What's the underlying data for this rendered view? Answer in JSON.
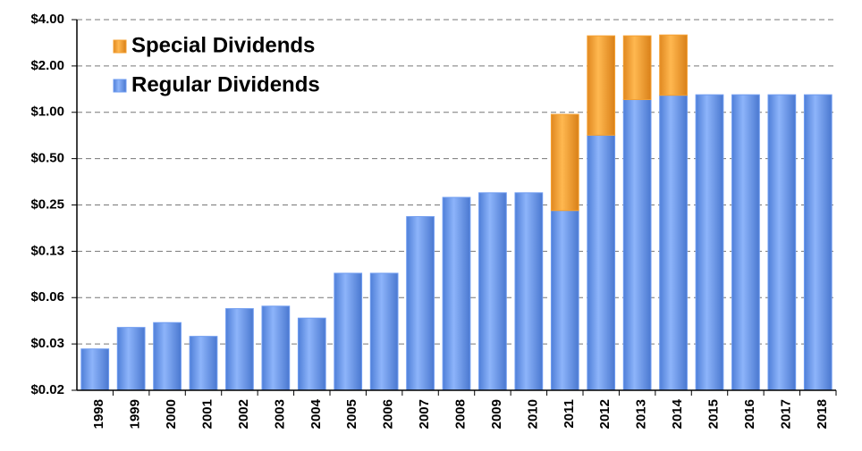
{
  "chart_data": {
    "type": "bar",
    "stacked": true,
    "log_scale": true,
    "log_base": 2,
    "categories": [
      "1998",
      "1999",
      "2000",
      "2001",
      "2002",
      "2003",
      "2004",
      "2005",
      "2006",
      "2007",
      "2008",
      "2009",
      "2010",
      "2011",
      "2012",
      "2013",
      "2014",
      "2015",
      "2016",
      "2017",
      "2018"
    ],
    "series": [
      {
        "name": "Regular Dividends",
        "color": "#6f9cf0",
        "values": [
          0.029,
          0.04,
          0.043,
          0.035,
          0.053,
          0.055,
          0.046,
          0.09,
          0.09,
          0.21,
          0.28,
          0.3,
          0.3,
          0.23,
          0.71,
          1.21,
          1.29,
          1.3,
          1.3,
          1.3,
          1.3
        ]
      },
      {
        "name": "Special Dividends",
        "color": "#f5a030",
        "values": [
          null,
          null,
          null,
          null,
          null,
          null,
          null,
          null,
          null,
          null,
          null,
          null,
          null,
          0.74,
          2.43,
          1.93,
          1.89,
          null,
          null,
          null,
          null
        ]
      }
    ],
    "ylim": [
      0.015625,
      4
    ],
    "yticks": [
      {
        "value": 0.015625,
        "label": "$0.02"
      },
      {
        "value": 0.03125,
        "label": "$0.03"
      },
      {
        "value": 0.0625,
        "label": "$0.06"
      },
      {
        "value": 0.125,
        "label": "$0.13"
      },
      {
        "value": 0.25,
        "label": "$0.25"
      },
      {
        "value": 0.5,
        "label": "$0.50"
      },
      {
        "value": 1,
        "label": "$1.00"
      },
      {
        "value": 2,
        "label": "$2.00"
      },
      {
        "value": 4,
        "label": "$4.00"
      }
    ],
    "grid": true,
    "legend": "top-left"
  }
}
